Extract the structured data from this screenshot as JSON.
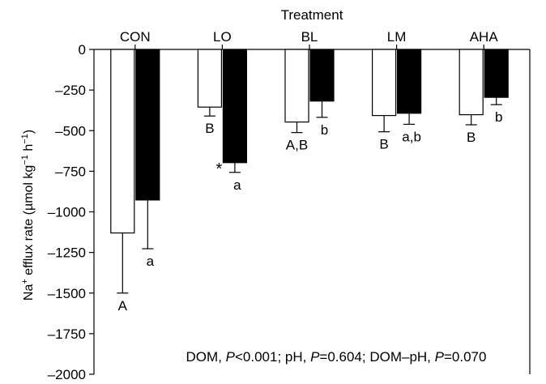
{
  "chart_data": {
    "type": "bar",
    "xlabel": "Treatment",
    "ylabel_parts": {
      "pre": "Na",
      "pre_sup": "+",
      "mid": " efflux rate (µmol kg",
      "sup1": "−1",
      "mid2": " h",
      "sup2": "−1",
      "post": ")"
    },
    "categories": [
      "CON",
      "LO",
      "BL",
      "LM",
      "AHA"
    ],
    "ylim": [
      -2000,
      0
    ],
    "yticks": [
      0,
      -250,
      -500,
      -750,
      -1000,
      -1250,
      -1500,
      -1750,
      -2000
    ],
    "ytick_labels": [
      "0",
      "–250",
      "–500",
      "–750",
      "–1000",
      "–1250",
      "–1500",
      "–1750",
      "–2000"
    ],
    "series": [
      {
        "fill": "#ffffff",
        "values": [
          -1130,
          -355,
          -447,
          -407,
          -402
        ],
        "errors": [
          370,
          55,
          65,
          100,
          62
        ],
        "labels": [
          "A",
          "B",
          "A,B",
          "B",
          "B"
        ]
      },
      {
        "fill": "#000000",
        "values": [
          -927,
          -697,
          -318,
          -393,
          -295
        ],
        "errors": [
          300,
          60,
          100,
          68,
          45
        ],
        "labels": [
          "a",
          "a",
          "b",
          "a,b",
          "b"
        ]
      }
    ],
    "asterisk": {
      "category_index": 1,
      "text": "*"
    },
    "annotation_parts": [
      {
        "text": "DOM, ",
        "italic": false
      },
      {
        "text": "P",
        "italic": true
      },
      {
        "text": "<0.001; pH, ",
        "italic": false
      },
      {
        "text": "P",
        "italic": true
      },
      {
        "text": "=0.604; DOM–pH, ",
        "italic": false
      },
      {
        "text": "P",
        "italic": true
      },
      {
        "text": "=0.070",
        "italic": false
      }
    ],
    "grid": false,
    "legend": "none"
  }
}
